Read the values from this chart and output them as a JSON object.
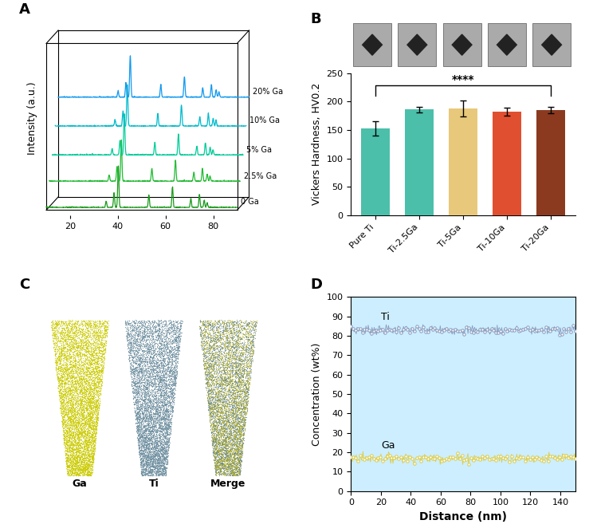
{
  "panel_A": {
    "label": "A",
    "ylabel": "Intensity (a.u.)",
    "xticks": [
      20,
      40,
      60,
      80
    ],
    "series_labels": [
      "0 Ga",
      "2.5% Ga",
      "5% Ga",
      "10% Ga",
      "20% Ga"
    ],
    "colors": [
      "#1a9a1a",
      "#22bb33",
      "#00cc99",
      "#00bbcc",
      "#1199ee"
    ],
    "x_range": [
      10,
      90
    ]
  },
  "panel_B": {
    "label": "B",
    "categories": [
      "Pure Ti",
      "Ti-2.5Ga",
      "Ti-5Ga",
      "Ti-10Ga",
      "Ti-20Ga"
    ],
    "values": [
      153,
      186,
      188,
      182,
      185
    ],
    "errors": [
      13,
      5,
      14,
      7,
      6
    ],
    "bar_colors": [
      "#4bbfaa",
      "#4bbfaa",
      "#e8c87a",
      "#e05030",
      "#8b3a20"
    ],
    "ylabel": "Vickers Hardness, HV0.2",
    "ylim": [
      0,
      250
    ],
    "yticks": [
      0,
      50,
      100,
      150,
      200,
      250
    ],
    "significance": "****",
    "sig_x1": 0,
    "sig_x2": 4,
    "sig_y": 228
  },
  "panel_C": {
    "label": "C",
    "sublabels": [
      "Ga",
      "Ti",
      "Merge"
    ],
    "color_ga": "#cccc00",
    "color_ti": "#7090a0",
    "color_merge_ga": "#aaaa20",
    "color_merge_ti": "#5a7a8a"
  },
  "panel_D": {
    "label": "D",
    "xlabel": "Distance (nm)",
    "ylabel": "Concentration (wt%)",
    "xlim": [
      0,
      150
    ],
    "ylim": [
      0,
      100
    ],
    "xticks": [
      0,
      20,
      40,
      60,
      80,
      100,
      120,
      140
    ],
    "yticks": [
      0,
      10,
      20,
      30,
      40,
      50,
      60,
      70,
      80,
      90,
      100
    ],
    "ti_mean": 83,
    "ga_mean": 17,
    "bg_color": "#cceeff",
    "ti_color": "#8899bb",
    "ga_color": "#ddcc44",
    "ti_label": "Ti",
    "ga_label": "Ga"
  },
  "label_fontsize": 13,
  "tick_fontsize": 8,
  "axis_label_fontsize": 9
}
